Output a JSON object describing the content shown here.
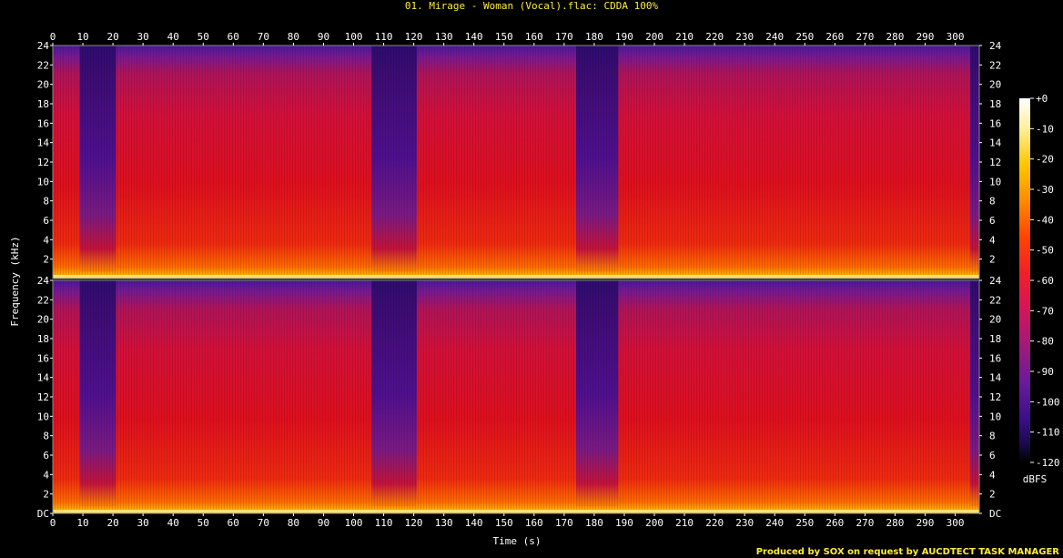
{
  "chart_data": {
    "type": "heatmap",
    "title": "01. Mirage - Woman (Vocal).flac: CDDA 100%",
    "xlabel": "Time (s)",
    "ylabel": "Frequency (kHz)",
    "xlim": [
      0,
      308
    ],
    "ylim": [
      0,
      24
    ],
    "x_ticks": [
      "0",
      "10",
      "20",
      "30",
      "40",
      "50",
      "60",
      "70",
      "80",
      "90",
      "100",
      "110",
      "120",
      "130",
      "140",
      "150",
      "160",
      "170",
      "180",
      "190",
      "200",
      "210",
      "220",
      "230",
      "240",
      "250",
      "260",
      "270",
      "280",
      "290",
      "300"
    ],
    "y_ticks_top": [
      "2",
      "4",
      "6",
      "8",
      "10",
      "12",
      "14",
      "16",
      "18",
      "20",
      "22",
      "24"
    ],
    "y_ticks_bottom": [
      "DC",
      "2",
      "4",
      "6",
      "8",
      "10",
      "12",
      "14",
      "16",
      "18",
      "20",
      "22",
      "24"
    ],
    "channels": 2,
    "colorbar": {
      "unit": "dBFS",
      "ticks": [
        "+0",
        "-10",
        "-20",
        "-30",
        "-40",
        "-50",
        "-60",
        "-70",
        "-80",
        "-90",
        "-100",
        "-110",
        "-120"
      ],
      "range": [
        -120,
        0
      ],
      "colors": [
        "#000000",
        "#1a0a4a",
        "#3b0f8a",
        "#6a1a9c",
        "#a01a7a",
        "#d4145a",
        "#f0202a",
        "#ff4500",
        "#ff8c00",
        "#ffc800",
        "#fff0a0",
        "#ffffff"
      ]
    },
    "quiet_sections_s": [
      [
        9,
        21
      ],
      [
        106,
        121
      ],
      [
        174,
        188
      ],
      [
        305,
        308
      ]
    ],
    "credit": "Produced by SOX on request by AUCDTECT TASK MANAGER"
  }
}
